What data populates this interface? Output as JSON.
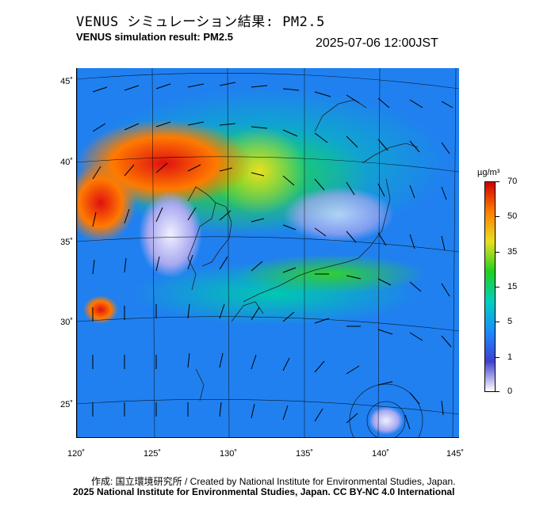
{
  "title_jp": "VENUS シミュレーション結果: PM2.5",
  "title_en": "VENUS simulation result: PM2.5",
  "timestamp": "2025-07-06 12:00JST",
  "map": {
    "lat_labels": [
      "45˚",
      "40˚",
      "35˚",
      "30˚",
      "25˚"
    ],
    "lon_labels": [
      "120˚",
      "125˚",
      "130˚",
      "135˚",
      "140˚",
      "145˚"
    ]
  },
  "colorbar": {
    "unit": "µg/m³",
    "ticks": [
      "70",
      "50",
      "35",
      "15",
      "5",
      "1",
      "0"
    ],
    "colors": [
      "#ffffff",
      "#4040d0",
      "#1a8cff",
      "#00d0c0",
      "#20d020",
      "#e8e020",
      "#ff8000",
      "#d00000"
    ]
  },
  "credits": {
    "line1": "作成: 国立環境研究所 / Created by National Institute for Environmental Studies, Japan.",
    "line2": "2025 National Institute for Environmental Studies, Japan. CC BY-NC 4.0 International"
  }
}
